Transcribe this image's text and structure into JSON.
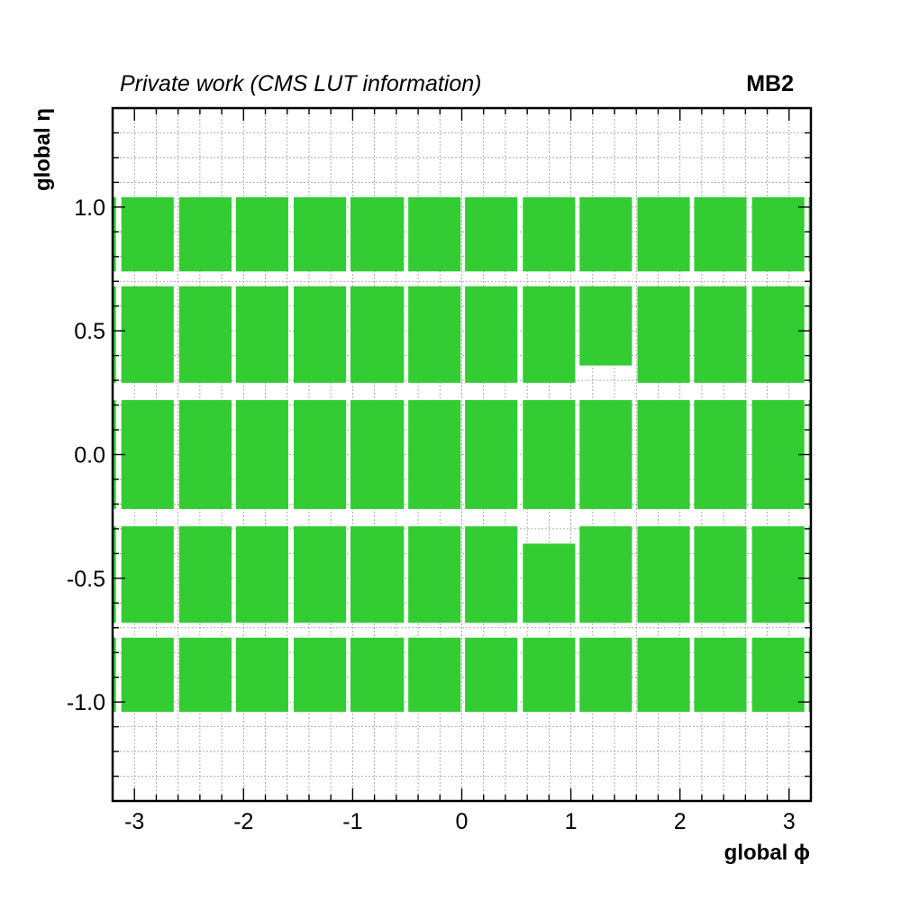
{
  "header": {
    "left_text": "Private work (CMS LUT information)",
    "right_text": "MB2"
  },
  "chart_data": {
    "type": "heatmap",
    "title": "",
    "xlabel": "global ϕ",
    "ylabel": "global η",
    "xlim": [
      -3.2,
      3.2
    ],
    "ylim": [
      -1.4,
      1.4
    ],
    "xticks": [
      -3,
      -2,
      -1,
      0,
      1,
      2,
      3
    ],
    "xtick_labels": [
      "-3",
      "-2",
      "-1",
      "0",
      "1",
      "2",
      "3"
    ],
    "yticks": [
      -1.0,
      -0.5,
      0.0,
      0.5,
      1.0
    ],
    "ytick_labels": [
      "-1.0",
      "-0.5",
      "0.0",
      "0.5",
      "1.0"
    ],
    "grid": true,
    "fill_color": "#33cc33",
    "sector_phi_ranges": [
      [
        -3.2,
        -3.17
      ],
      [
        -3.12,
        -2.64
      ],
      [
        -2.59,
        -2.11
      ],
      [
        -2.07,
        -1.59
      ],
      [
        -1.54,
        -1.06
      ],
      [
        -1.02,
        -0.53
      ],
      [
        -0.49,
        -0.01
      ],
      [
        0.03,
        0.51
      ],
      [
        0.56,
        1.04
      ],
      [
        1.08,
        1.56
      ],
      [
        1.61,
        2.09
      ],
      [
        2.13,
        2.61
      ],
      [
        2.66,
        3.14
      ],
      [
        3.18,
        3.2
      ]
    ],
    "wheel_eta_ranges": [
      [
        -1.04,
        -0.74
      ],
      [
        -0.68,
        -0.29
      ],
      [
        -0.22,
        0.22
      ],
      [
        0.29,
        0.68
      ],
      [
        0.74,
        1.04
      ]
    ],
    "chambers": [
      {
        "wheel": -2,
        "sectors": [
          0,
          1,
          2,
          3,
          4,
          5,
          6,
          7,
          8,
          9,
          10,
          11,
          12,
          13
        ]
      },
      {
        "wheel": -1,
        "sectors": [
          0,
          1,
          2,
          3,
          4,
          5,
          6,
          7,
          8,
          9,
          10,
          11,
          12,
          13
        ]
      },
      {
        "wheel": 0,
        "sectors": [
          0,
          1,
          2,
          3,
          4,
          5,
          6,
          7,
          8,
          9,
          10,
          11,
          12,
          13
        ]
      },
      {
        "wheel": 1,
        "sectors": [
          0,
          1,
          2,
          3,
          4,
          5,
          6,
          7,
          8,
          9,
          10,
          11,
          12,
          13
        ]
      },
      {
        "wheel": 2,
        "sectors": [
          0,
          1,
          2,
          3,
          4,
          5,
          6,
          7,
          8,
          9,
          10,
          11,
          12,
          13
        ]
      }
    ],
    "eta_overrides": [
      {
        "wheel": -1,
        "sector": 8,
        "eta_range": [
          -0.68,
          -0.36
        ]
      },
      {
        "wheel": 1,
        "sector": 9,
        "eta_range": [
          0.36,
          0.68
        ]
      }
    ]
  }
}
